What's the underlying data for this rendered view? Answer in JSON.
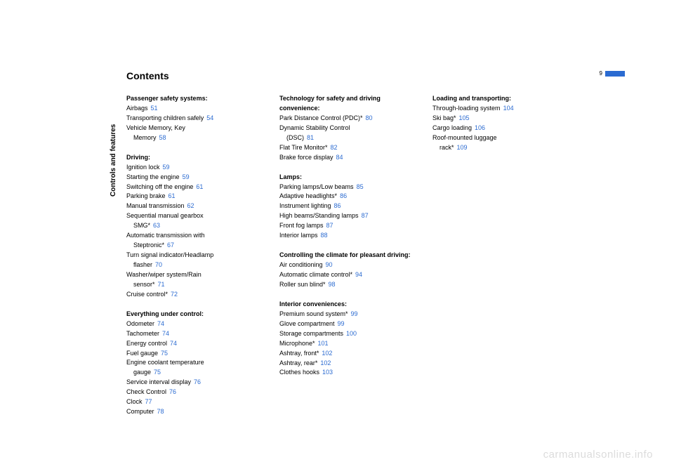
{
  "title": "Contents",
  "page_number": "9",
  "side_label": "Controls and features",
  "watermark": "carmanualsonline.info",
  "colors": {
    "accent": "#2b6bd1",
    "text": "#000000",
    "watermark": "#dcdcdc",
    "background": "#ffffff"
  },
  "typography": {
    "title_fontsize": 14,
    "body_fontsize": 9,
    "side_label_fontsize": 10,
    "page_num_fontsize": 8,
    "watermark_fontsize": 15,
    "font_family": "Arial"
  },
  "columns": [
    {
      "sections": [
        {
          "title": "Passenger safety systems:",
          "entries": [
            {
              "text": "Airbags",
              "page": "51"
            },
            {
              "text": "Transporting children safely",
              "page": "54"
            },
            {
              "text": "Vehicle Memory, Key"
            },
            {
              "text": "Memory",
              "page": "58",
              "indent": true
            }
          ]
        },
        {
          "title": "Driving:",
          "entries": [
            {
              "text": "Ignition lock",
              "page": "59"
            },
            {
              "text": "Starting the engine",
              "page": "59"
            },
            {
              "text": "Switching off the engine",
              "page": "61"
            },
            {
              "text": "Parking brake",
              "page": "61"
            },
            {
              "text": "Manual transmission",
              "page": "62"
            },
            {
              "text": "Sequential manual gearbox"
            },
            {
              "text": "SMG*",
              "page": "63",
              "indent": true
            },
            {
              "text": "Automatic transmission with"
            },
            {
              "text": "Steptronic*",
              "page": "67",
              "indent": true
            },
            {
              "text": "Turn signal indicator/Headlamp"
            },
            {
              "text": "flasher",
              "page": "70",
              "indent": true
            },
            {
              "text": "Washer/wiper system/Rain"
            },
            {
              "text": "sensor*",
              "page": "71",
              "indent": true
            },
            {
              "text": "Cruise control*",
              "page": "72"
            }
          ]
        },
        {
          "title": "Everything under control:",
          "entries": [
            {
              "text": "Odometer",
              "page": "74"
            },
            {
              "text": "Tachometer",
              "page": "74"
            },
            {
              "text": "Energy control",
              "page": "74"
            },
            {
              "text": "Fuel gauge",
              "page": "75"
            },
            {
              "text": "Engine coolant temperature"
            },
            {
              "text": "gauge",
              "page": "75",
              "indent": true
            },
            {
              "text": "Service interval display",
              "page": "76"
            },
            {
              "text": "Check Control",
              "page": "76"
            },
            {
              "text": "Clock",
              "page": "77"
            },
            {
              "text": "Computer",
              "page": "78"
            }
          ]
        }
      ]
    },
    {
      "sections": [
        {
          "title": "Technology for safety and driving convenience:",
          "entries": [
            {
              "text": "Park Distance Control (PDC)*",
              "page": "80"
            },
            {
              "text": "Dynamic Stability Control"
            },
            {
              "text": "(DSC)",
              "page": "81",
              "indent": true
            },
            {
              "text": "Flat Tire Monitor*",
              "page": "82"
            },
            {
              "text": "Brake force display",
              "page": "84"
            }
          ]
        },
        {
          "title": "Lamps:",
          "entries": [
            {
              "text": "Parking lamps/Low beams",
              "page": "85"
            },
            {
              "text": "Adaptive headlights*",
              "page": "86"
            },
            {
              "text": "Instrument lighting",
              "page": "86"
            },
            {
              "text": "High beams/Standing lamps",
              "page": "87"
            },
            {
              "text": "Front fog lamps",
              "page": "87"
            },
            {
              "text": "Interior lamps",
              "page": "88"
            }
          ]
        },
        {
          "title": "Controlling the climate for pleasant driving:",
          "entries": [
            {
              "text": "Air conditioning",
              "page": "90"
            },
            {
              "text": "Automatic climate control*",
              "page": "94"
            },
            {
              "text": "Roller sun blind*",
              "page": "98"
            }
          ]
        },
        {
          "title": "Interior conveniences:",
          "entries": [
            {
              "text": "Premium sound system*",
              "page": "99"
            },
            {
              "text": "Glove compartment",
              "page": "99"
            },
            {
              "text": "Storage compartments",
              "page": "100"
            },
            {
              "text": "Microphone*",
              "page": "101"
            },
            {
              "text": "Ashtray, front*",
              "page": "102"
            },
            {
              "text": "Ashtray, rear*",
              "page": "102"
            },
            {
              "text": "Clothes hooks",
              "page": "103"
            }
          ]
        }
      ]
    },
    {
      "sections": [
        {
          "title": "Loading and transporting:",
          "entries": [
            {
              "text": "Through-loading system",
              "page": "104"
            },
            {
              "text": "Ski bag*",
              "page": "105"
            },
            {
              "text": "Cargo loading",
              "page": "106"
            },
            {
              "text": "Roof-mounted luggage"
            },
            {
              "text": "rack*",
              "page": "109",
              "indent": true
            }
          ]
        }
      ]
    }
  ]
}
